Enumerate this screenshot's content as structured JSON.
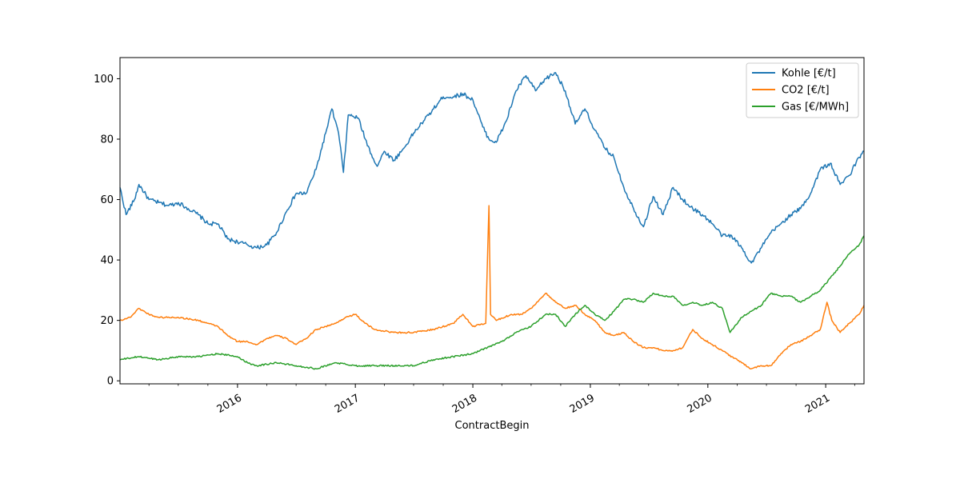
{
  "chart_data": {
    "type": "line",
    "title": "",
    "xlabel": "ContractBegin",
    "ylabel": "",
    "xlim": [
      "2015-01-01",
      "2021-04-30"
    ],
    "ylim": [
      -1,
      107
    ],
    "x_ticks": [
      {
        "date": "2016-01-01",
        "label": "2016"
      },
      {
        "date": "2017-01-01",
        "label": "2017"
      },
      {
        "date": "2018-01-01",
        "label": "2018"
      },
      {
        "date": "2019-01-01",
        "label": "2019"
      },
      {
        "date": "2020-01-01",
        "label": "2020"
      },
      {
        "date": "2021-01-01",
        "label": "2021"
      }
    ],
    "y_ticks": [
      0,
      20,
      40,
      60,
      80,
      100
    ],
    "grid": false,
    "legend_position": "top-right",
    "series": [
      {
        "name": "Kohle [€/t]",
        "color": "#1f77b4",
        "points": [
          [
            "2015-01-01",
            64
          ],
          [
            "2015-01-20",
            55
          ],
          [
            "2015-02-15",
            60
          ],
          [
            "2015-03-01",
            65
          ],
          [
            "2015-04-01",
            60
          ],
          [
            "2015-05-01",
            59
          ],
          [
            "2015-06-01",
            58
          ],
          [
            "2015-07-01",
            59
          ],
          [
            "2015-08-01",
            57
          ],
          [
            "2015-09-01",
            55
          ],
          [
            "2015-10-01",
            52
          ],
          [
            "2015-11-01",
            52
          ],
          [
            "2015-12-01",
            47
          ],
          [
            "2016-01-01",
            46
          ],
          [
            "2016-02-01",
            45
          ],
          [
            "2016-03-01",
            44
          ],
          [
            "2016-04-01",
            45
          ],
          [
            "2016-05-01",
            49
          ],
          [
            "2016-06-01",
            56
          ],
          [
            "2016-07-01",
            62
          ],
          [
            "2016-08-01",
            62
          ],
          [
            "2016-09-01",
            70
          ],
          [
            "2016-10-01",
            82
          ],
          [
            "2016-10-20",
            90
          ],
          [
            "2016-11-10",
            82
          ],
          [
            "2016-11-25",
            69
          ],
          [
            "2016-12-10",
            88
          ],
          [
            "2017-01-10",
            87
          ],
          [
            "2017-02-01",
            80
          ],
          [
            "2017-02-20",
            75
          ],
          [
            "2017-03-10",
            71
          ],
          [
            "2017-04-01",
            76
          ],
          [
            "2017-05-01",
            73
          ],
          [
            "2017-06-01",
            77
          ],
          [
            "2017-07-01",
            82
          ],
          [
            "2017-08-01",
            86
          ],
          [
            "2017-09-01",
            90
          ],
          [
            "2017-10-01",
            94
          ],
          [
            "2017-11-01",
            94
          ],
          [
            "2017-12-01",
            95
          ],
          [
            "2018-01-01",
            93
          ],
          [
            "2018-02-01",
            84
          ],
          [
            "2018-02-20",
            80
          ],
          [
            "2018-03-15",
            79
          ],
          [
            "2018-04-15",
            86
          ],
          [
            "2018-05-15",
            96
          ],
          [
            "2018-06-15",
            101
          ],
          [
            "2018-07-15",
            96
          ],
          [
            "2018-08-15",
            100
          ],
          [
            "2018-09-15",
            102
          ],
          [
            "2018-10-15",
            96
          ],
          [
            "2018-11-15",
            85
          ],
          [
            "2018-12-15",
            90
          ],
          [
            "2019-01-15",
            83
          ],
          [
            "2019-02-15",
            77
          ],
          [
            "2019-03-15",
            74
          ],
          [
            "2019-04-15",
            64
          ],
          [
            "2019-05-15",
            57
          ],
          [
            "2019-06-15",
            51
          ],
          [
            "2019-07-15",
            61
          ],
          [
            "2019-08-15",
            55
          ],
          [
            "2019-09-15",
            64
          ],
          [
            "2019-10-15",
            60
          ],
          [
            "2019-11-15",
            57
          ],
          [
            "2019-12-15",
            55
          ],
          [
            "2020-01-15",
            52
          ],
          [
            "2020-02-15",
            48
          ],
          [
            "2020-03-15",
            48
          ],
          [
            "2020-04-15",
            44
          ],
          [
            "2020-05-15",
            39
          ],
          [
            "2020-06-15",
            44
          ],
          [
            "2020-07-15",
            49
          ],
          [
            "2020-08-15",
            52
          ],
          [
            "2020-09-15",
            55
          ],
          [
            "2020-10-15",
            57
          ],
          [
            "2020-11-15",
            62
          ],
          [
            "2020-12-15",
            70
          ],
          [
            "2021-01-15",
            72
          ],
          [
            "2021-02-15",
            65
          ],
          [
            "2021-03-15",
            68
          ],
          [
            "2021-04-15",
            74
          ],
          [
            "2021-04-30",
            76
          ]
        ]
      },
      {
        "name": "CO2 [€/t]",
        "color": "#ff7f0e",
        "points": [
          [
            "2015-01-01",
            20
          ],
          [
            "2015-02-01",
            21
          ],
          [
            "2015-03-01",
            24
          ],
          [
            "2015-04-01",
            22
          ],
          [
            "2015-05-01",
            21
          ],
          [
            "2015-07-01",
            21
          ],
          [
            "2015-09-01",
            20
          ],
          [
            "2015-11-01",
            18
          ],
          [
            "2015-12-01",
            15
          ],
          [
            "2016-01-01",
            13
          ],
          [
            "2016-02-01",
            13
          ],
          [
            "2016-03-01",
            12
          ],
          [
            "2016-04-01",
            14
          ],
          [
            "2016-05-01",
            15
          ],
          [
            "2016-06-01",
            14
          ],
          [
            "2016-07-01",
            12
          ],
          [
            "2016-08-01",
            14
          ],
          [
            "2016-09-01",
            17
          ],
          [
            "2016-10-01",
            18
          ],
          [
            "2016-11-01",
            19
          ],
          [
            "2016-12-01",
            21
          ],
          [
            "2017-01-01",
            22
          ],
          [
            "2017-02-01",
            19
          ],
          [
            "2017-03-01",
            17
          ],
          [
            "2017-05-01",
            16
          ],
          [
            "2017-07-01",
            16
          ],
          [
            "2017-09-01",
            17
          ],
          [
            "2017-11-01",
            19
          ],
          [
            "2017-12-01",
            22
          ],
          [
            "2018-01-01",
            18
          ],
          [
            "2018-02-10",
            19
          ],
          [
            "2018-02-20",
            58
          ],
          [
            "2018-02-25",
            22
          ],
          [
            "2018-03-15",
            20
          ],
          [
            "2018-05-01",
            22
          ],
          [
            "2018-06-01",
            22
          ],
          [
            "2018-07-01",
            24
          ],
          [
            "2018-08-15",
            29
          ],
          [
            "2018-09-15",
            26
          ],
          [
            "2018-10-15",
            24
          ],
          [
            "2018-11-15",
            25
          ],
          [
            "2018-12-15",
            22
          ],
          [
            "2019-01-15",
            20
          ],
          [
            "2019-02-15",
            16
          ],
          [
            "2019-03-15",
            15
          ],
          [
            "2019-04-15",
            16
          ],
          [
            "2019-05-15",
            13
          ],
          [
            "2019-06-15",
            11
          ],
          [
            "2019-07-15",
            11
          ],
          [
            "2019-08-15",
            10
          ],
          [
            "2019-09-15",
            10
          ],
          [
            "2019-10-15",
            11
          ],
          [
            "2019-11-15",
            17
          ],
          [
            "2019-12-15",
            14
          ],
          [
            "2020-01-15",
            12
          ],
          [
            "2020-02-15",
            10
          ],
          [
            "2020-03-15",
            8
          ],
          [
            "2020-04-15",
            6
          ],
          [
            "2020-05-15",
            4
          ],
          [
            "2020-06-15",
            5
          ],
          [
            "2020-07-15",
            5
          ],
          [
            "2020-08-15",
            9
          ],
          [
            "2020-09-15",
            12
          ],
          [
            "2020-10-15",
            13
          ],
          [
            "2020-11-15",
            15
          ],
          [
            "2020-12-15",
            17
          ],
          [
            "2021-01-05",
            26
          ],
          [
            "2021-01-20",
            20
          ],
          [
            "2021-02-15",
            16
          ],
          [
            "2021-03-15",
            19
          ],
          [
            "2021-04-15",
            22
          ],
          [
            "2021-04-30",
            25
          ]
        ]
      },
      {
        "name": "Gas [€/MWh]",
        "color": "#2ca02c",
        "points": [
          [
            "2015-01-01",
            7
          ],
          [
            "2015-03-01",
            8
          ],
          [
            "2015-05-01",
            7
          ],
          [
            "2015-07-01",
            8
          ],
          [
            "2015-09-01",
            8
          ],
          [
            "2015-11-01",
            9
          ],
          [
            "2016-01-01",
            8
          ],
          [
            "2016-02-01",
            6
          ],
          [
            "2016-03-01",
            5
          ],
          [
            "2016-05-01",
            6
          ],
          [
            "2016-07-01",
            5
          ],
          [
            "2016-09-01",
            4
          ],
          [
            "2016-11-01",
            6
          ],
          [
            "2017-01-01",
            5
          ],
          [
            "2017-03-01",
            5
          ],
          [
            "2017-05-01",
            5
          ],
          [
            "2017-07-01",
            5
          ],
          [
            "2017-09-01",
            7
          ],
          [
            "2017-11-01",
            8
          ],
          [
            "2018-01-01",
            9
          ],
          [
            "2018-02-15",
            11
          ],
          [
            "2018-04-01",
            13
          ],
          [
            "2018-05-15",
            16
          ],
          [
            "2018-07-01",
            18
          ],
          [
            "2018-08-15",
            22
          ],
          [
            "2018-09-15",
            22
          ],
          [
            "2018-10-15",
            18
          ],
          [
            "2018-11-15",
            22
          ],
          [
            "2018-12-15",
            25
          ],
          [
            "2019-01-15",
            22
          ],
          [
            "2019-02-15",
            20
          ],
          [
            "2019-03-15",
            23
          ],
          [
            "2019-04-15",
            27
          ],
          [
            "2019-05-15",
            27
          ],
          [
            "2019-06-15",
            26
          ],
          [
            "2019-07-15",
            29
          ],
          [
            "2019-08-15",
            28
          ],
          [
            "2019-09-15",
            28
          ],
          [
            "2019-10-15",
            25
          ],
          [
            "2019-11-15",
            26
          ],
          [
            "2019-12-15",
            25
          ],
          [
            "2020-01-15",
            26
          ],
          [
            "2020-02-15",
            24
          ],
          [
            "2020-03-10",
            16
          ],
          [
            "2020-04-15",
            21
          ],
          [
            "2020-05-15",
            23
          ],
          [
            "2020-06-15",
            25
          ],
          [
            "2020-07-15",
            29
          ],
          [
            "2020-08-15",
            28
          ],
          [
            "2020-09-15",
            28
          ],
          [
            "2020-10-15",
            26
          ],
          [
            "2020-11-15",
            28
          ],
          [
            "2020-12-15",
            30
          ],
          [
            "2021-01-15",
            34
          ],
          [
            "2021-02-15",
            38
          ],
          [
            "2021-03-15",
            42
          ],
          [
            "2021-04-15",
            45
          ],
          [
            "2021-04-30",
            48
          ]
        ]
      }
    ]
  }
}
